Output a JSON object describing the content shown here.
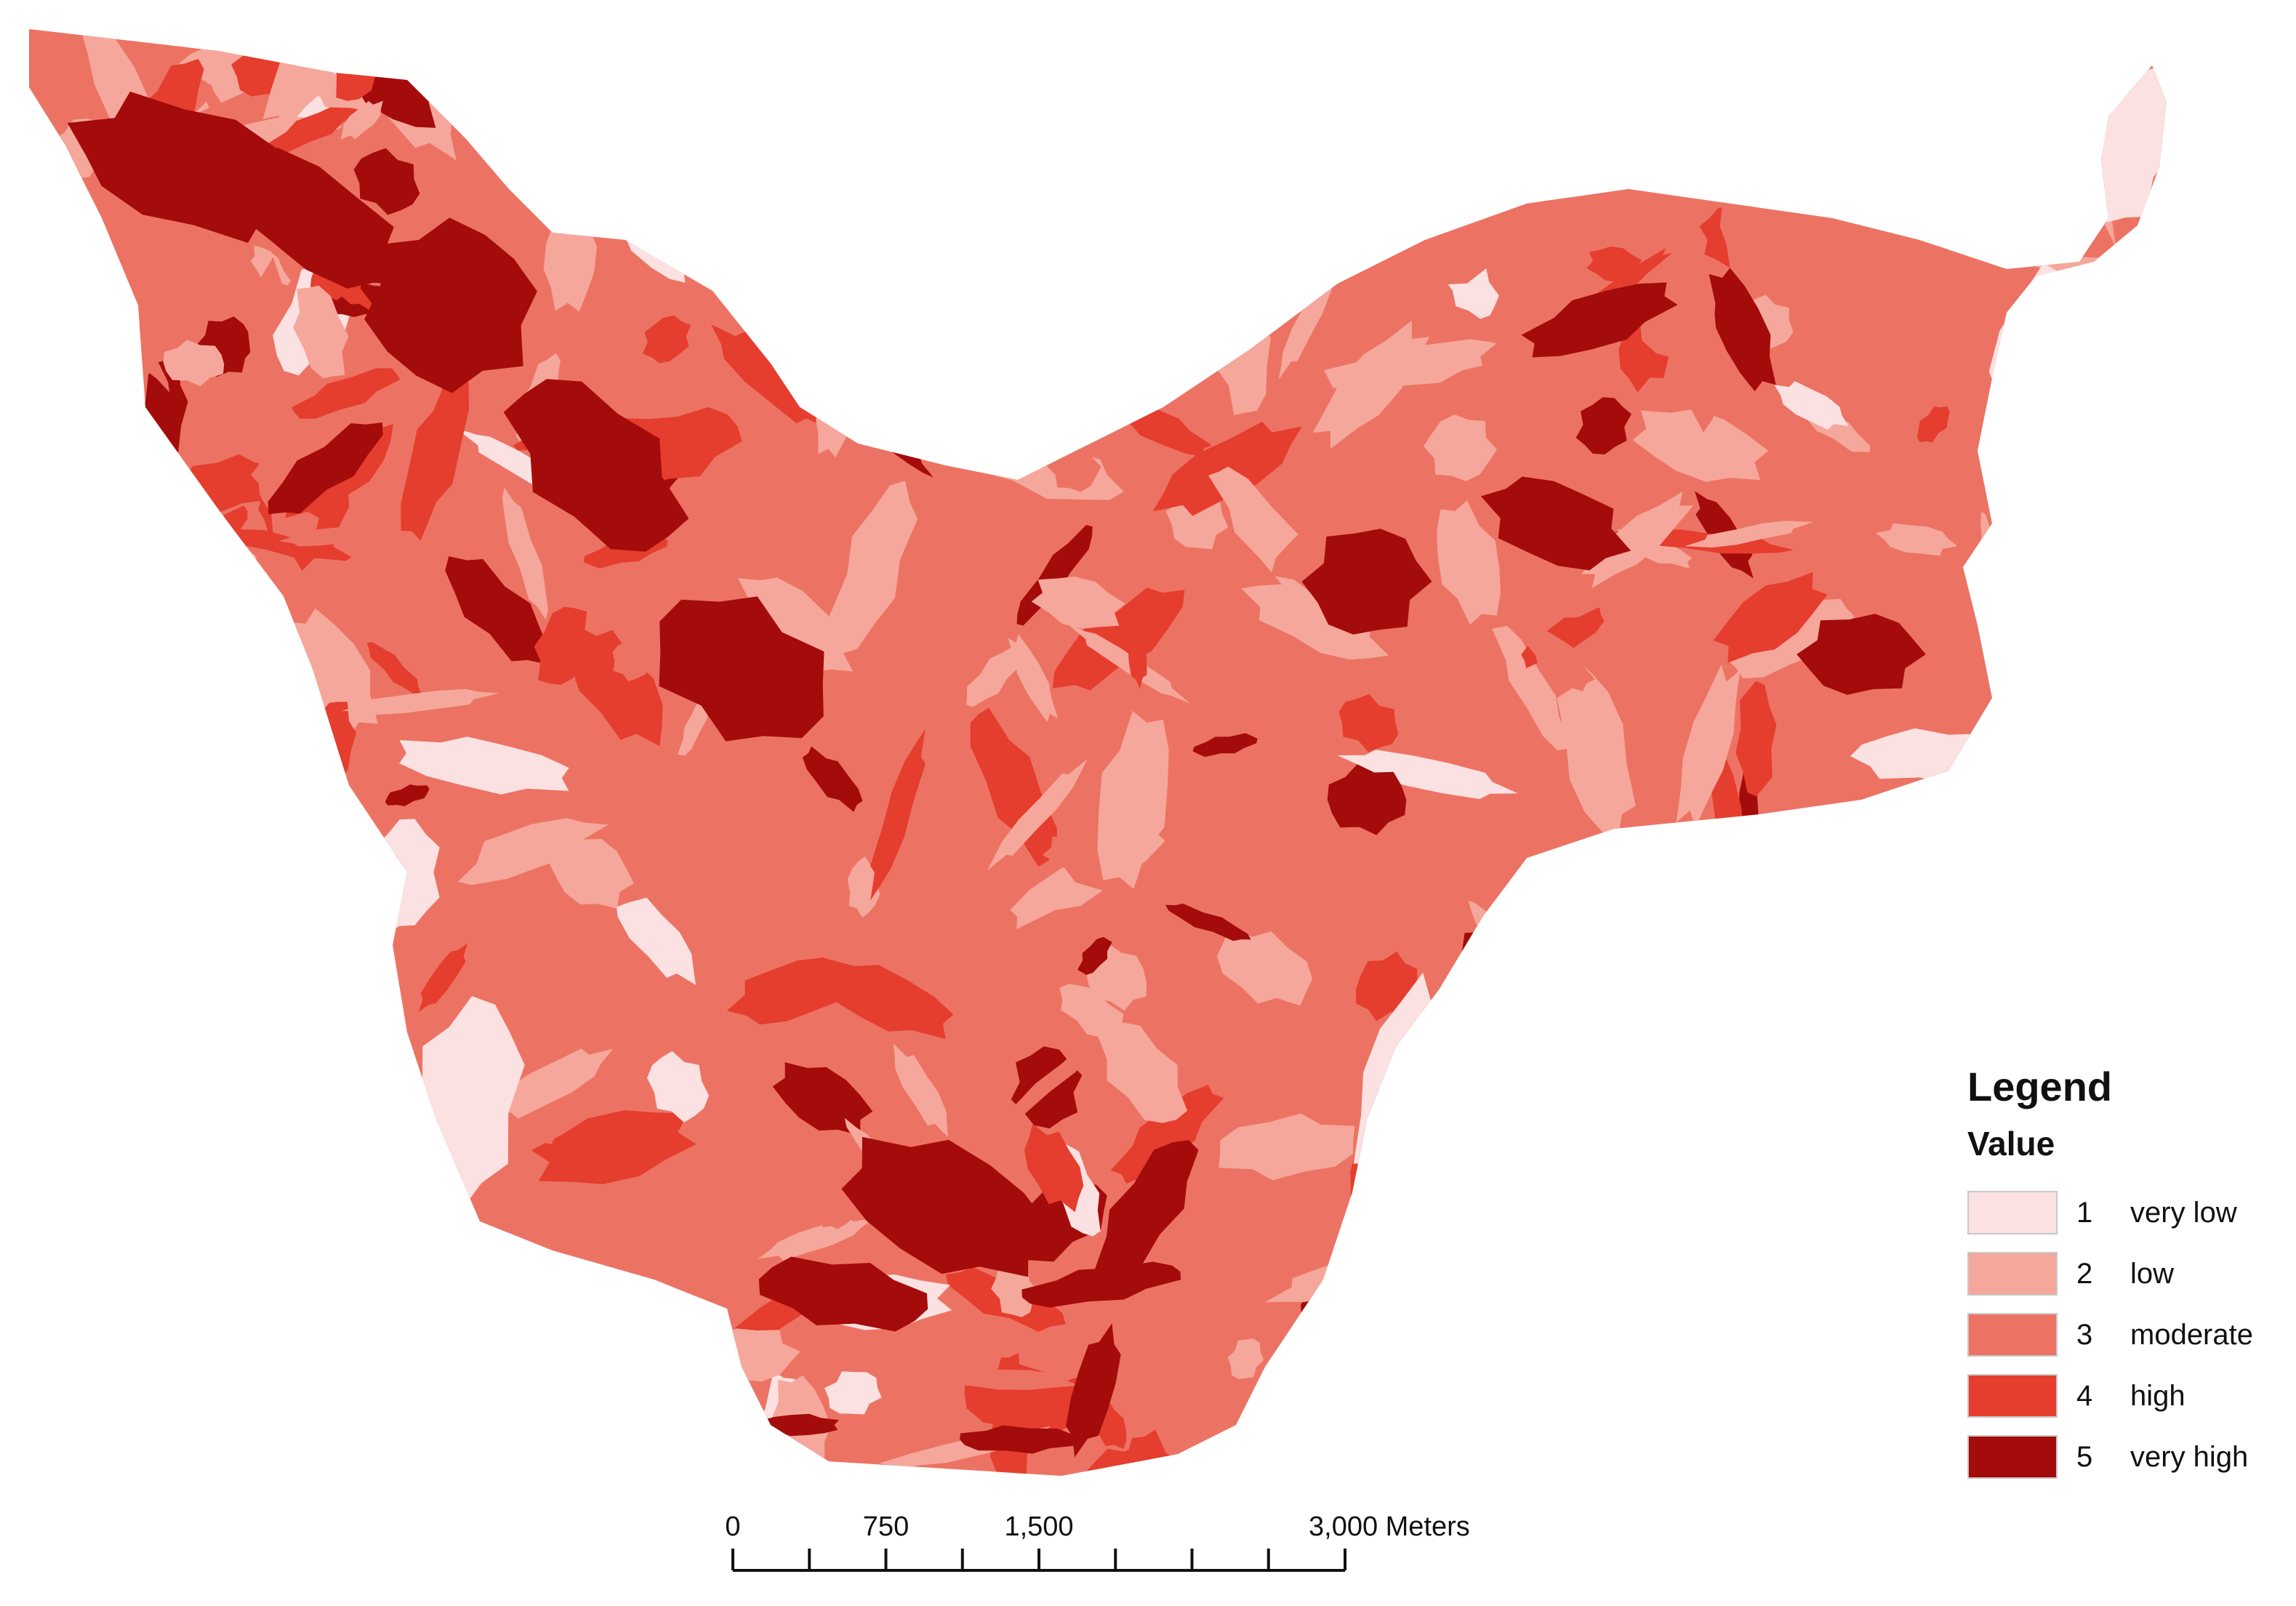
{
  "legend": {
    "title": "Legend",
    "subtitle": "Value",
    "classes": [
      {
        "value": "1",
        "label": "very low",
        "color": "#fbe1e1"
      },
      {
        "value": "2",
        "label": "low",
        "color": "#f6a79b"
      },
      {
        "value": "3",
        "label": "moderate",
        "color": "#ec7363"
      },
      {
        "value": "4",
        "label": "high",
        "color": "#e53d2e"
      },
      {
        "value": "5",
        "label": "very high",
        "color": "#a40b0b"
      }
    ]
  },
  "scalebar": {
    "ticks": [
      "0",
      "750",
      "1,500",
      "3,000 Meters"
    ]
  }
}
